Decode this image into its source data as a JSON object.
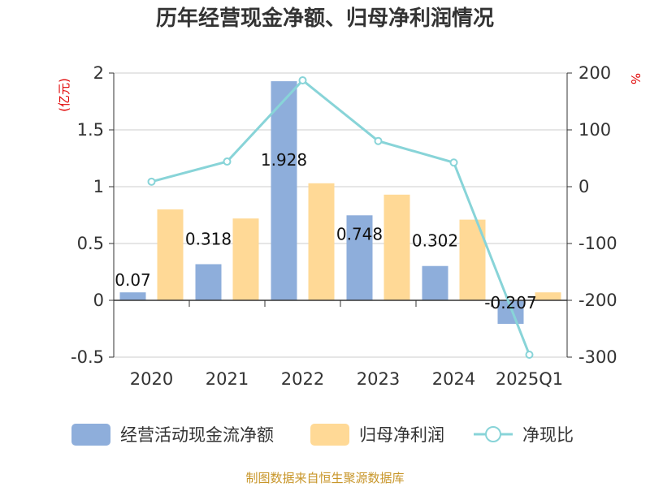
{
  "title": "历年经营现金净额、归母净利润情况",
  "source": "制图数据来自恒生聚源数据库",
  "chart_data": {
    "type": "bar",
    "categories": [
      "2020",
      "2021",
      "2022",
      "2023",
      "2024",
      "2025Q1"
    ],
    "series": [
      {
        "name": "经营活动现金流净额",
        "kind": "bar",
        "axis": "left",
        "color": "#8eaedb",
        "values": [
          0.07,
          0.318,
          1.928,
          0.748,
          0.302,
          -0.207
        ]
      },
      {
        "name": "归母净利润",
        "kind": "bar",
        "axis": "left",
        "color": "#ffd996",
        "values": [
          0.8,
          0.72,
          1.03,
          0.93,
          0.71,
          0.07
        ]
      },
      {
        "name": "净现比",
        "kind": "line",
        "axis": "right",
        "color": "#88d4d8",
        "values": [
          8.8,
          44.2,
          187.2,
          80.4,
          42.5,
          -295.7
        ]
      }
    ],
    "data_labels": [
      "0.07",
      "0.318",
      "1.928",
      "0.748",
      "0.302",
      "-0.207"
    ],
    "y_left": {
      "label": "(亿元)",
      "ylim": [
        -0.5,
        2
      ],
      "ticks": [
        2,
        1.5,
        1,
        0.5,
        0,
        -0.5
      ],
      "tick_labels": [
        "2",
        "1.5",
        "1",
        "0.5",
        "0",
        "-0.5"
      ]
    },
    "y_right": {
      "label": "%",
      "ylim": [
        -300,
        200
      ],
      "ticks": [
        200,
        100,
        0,
        -100,
        -200,
        -300
      ],
      "tick_labels": [
        "200",
        "100",
        "0",
        "-100",
        "-200",
        "-300"
      ]
    },
    "grid": true,
    "legend_position": "bottom"
  }
}
